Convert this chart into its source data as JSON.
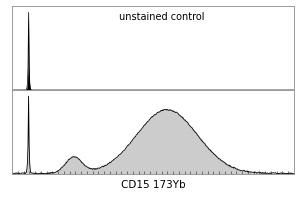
{
  "title_top": "unstained control",
  "xlabel": "CD15 173Yb",
  "bg_color": "#ffffff",
  "border_color": "#999999",
  "line_color_top": "#000000",
  "line_color_bottom": "#000000",
  "fill_color_top": "#000000",
  "fill_color_bottom": "#cccccc",
  "tick_major_color": "#444444",
  "font_size_title": 7.0,
  "font_size_xlabel": 7.5
}
